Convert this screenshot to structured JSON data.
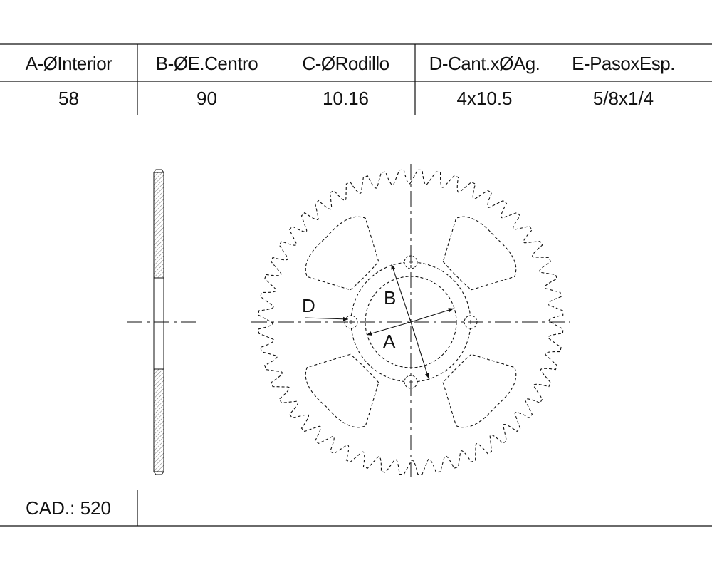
{
  "table": {
    "headers": [
      "A-ØInterior",
      "B-ØE.Centro",
      "C-ØRodillo",
      "D-Cant.xØAg.",
      "E-PasoxEsp."
    ],
    "values": [
      "58",
      "90",
      "10.16",
      "4x10.5",
      "5/8x1/4"
    ]
  },
  "labels": {
    "a": "A",
    "b": "B",
    "d": "D"
  },
  "cad": {
    "text": "CAD.: 520"
  },
  "sprocket": {
    "teeth": 52,
    "bolt_holes": 4,
    "cutouts": 4
  }
}
